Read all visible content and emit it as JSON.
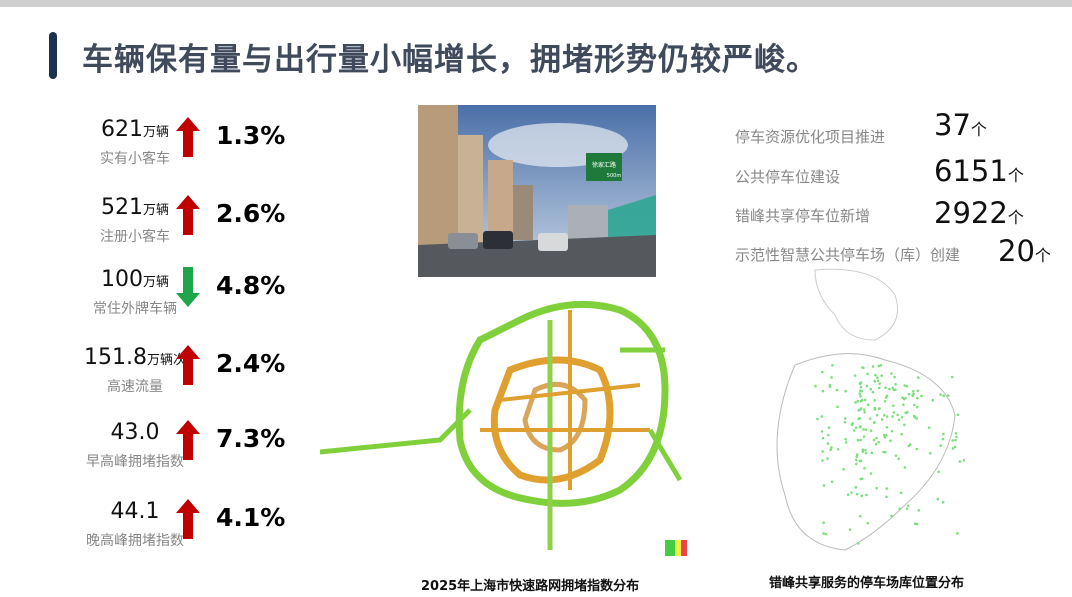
{
  "header": {
    "title": "车辆保有量与出行量小幅增长，拥堵形势仍较严峻。"
  },
  "stats": [
    {
      "value": "621",
      "unit": "万辆",
      "label": "实有小客车",
      "direction": "up",
      "change": "1.3%"
    },
    {
      "value": "521",
      "unit": "万辆",
      "label": "注册小客车",
      "direction": "up",
      "change": "2.6%"
    },
    {
      "value": "100",
      "unit": "万辆",
      "label": "常住外牌车辆",
      "direction": "down",
      "change": "4.8%"
    },
    {
      "value": "151.8",
      "unit": "万辆次",
      "label": "高速流量",
      "direction": "up",
      "change": "2.4%"
    },
    {
      "value": "43.0",
      "unit": "",
      "label": "早高峰拥堵指数",
      "direction": "up",
      "change": "7.3%"
    },
    {
      "value": "44.1",
      "unit": "",
      "label": "晚高峰拥堵指数",
      "direction": "up",
      "change": "4.1%"
    }
  ],
  "colors": {
    "up": "#c00000",
    "down": "#1fa54a",
    "title": "#3f4a5c",
    "accent": "#1b3350"
  },
  "parking": [
    {
      "label": "停车资源优化项目推进",
      "value": "37",
      "unit": "个"
    },
    {
      "label": "公共停车位建设",
      "value": "6151",
      "unit": "个"
    },
    {
      "label": "错峰共享停车位新增",
      "value": "2922",
      "unit": "个"
    },
    {
      "label": "示范性智慧公共停车场（库）创建",
      "value": "20",
      "unit": "个"
    }
  ],
  "photo": {
    "sign_text": "徐家汇路",
    "sign_distance": "500m"
  },
  "captions": {
    "congestion_map": "2025年上海市快速路网拥堵指数分布",
    "parking_map": "错峰共享服务的停车场库位置分布"
  }
}
